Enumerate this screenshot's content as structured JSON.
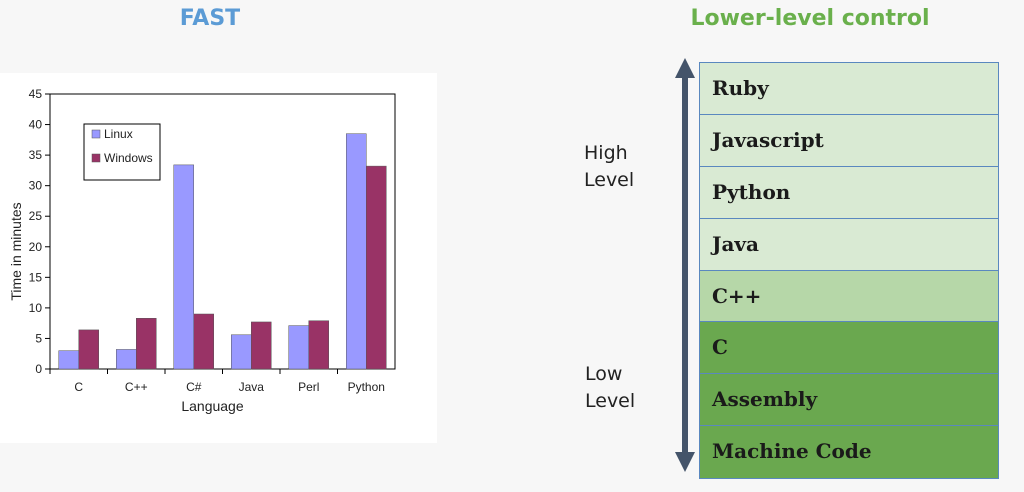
{
  "headings": {
    "left": "FAST",
    "right": "Lower-level control",
    "left_color": "#5b9bd5",
    "right_color": "#6ab04c"
  },
  "chart_data": {
    "type": "bar",
    "title": "",
    "xlabel": "Language",
    "ylabel": "Time in minutes",
    "categories": [
      "C",
      "C++",
      "C#",
      "Java",
      "Perl",
      "Python"
    ],
    "series": [
      {
        "name": "Linux",
        "values": [
          3.0,
          3.2,
          33.4,
          5.6,
          7.1,
          38.5
        ],
        "color": "#9999ff"
      },
      {
        "name": "Windows",
        "values": [
          6.4,
          8.3,
          9.0,
          7.7,
          7.9,
          33.2
        ],
        "color": "#993366"
      }
    ],
    "ylim": [
      0,
      45
    ],
    "yticks": [
      0,
      5,
      10,
      15,
      20,
      25,
      30,
      35,
      40,
      45
    ],
    "legend": "top-left",
    "grid": false
  },
  "levels": {
    "high": "High\nLevel",
    "low": "Low\nLevel"
  },
  "stack": [
    {
      "label": "Ruby",
      "color": "#d9ead3"
    },
    {
      "label": "Javascript",
      "color": "#d9ead3"
    },
    {
      "label": "Python",
      "color": "#d9ead3"
    },
    {
      "label": "Java",
      "color": "#d9ead3"
    },
    {
      "label": "C++",
      "color": "#b6d7a8"
    },
    {
      "label": "C",
      "color": "#6aa84f"
    },
    {
      "label": "Assembly",
      "color": "#6aa84f"
    },
    {
      "label": "Machine Code",
      "color": "#6aa84f"
    }
  ],
  "arrow_color": "#44546a"
}
